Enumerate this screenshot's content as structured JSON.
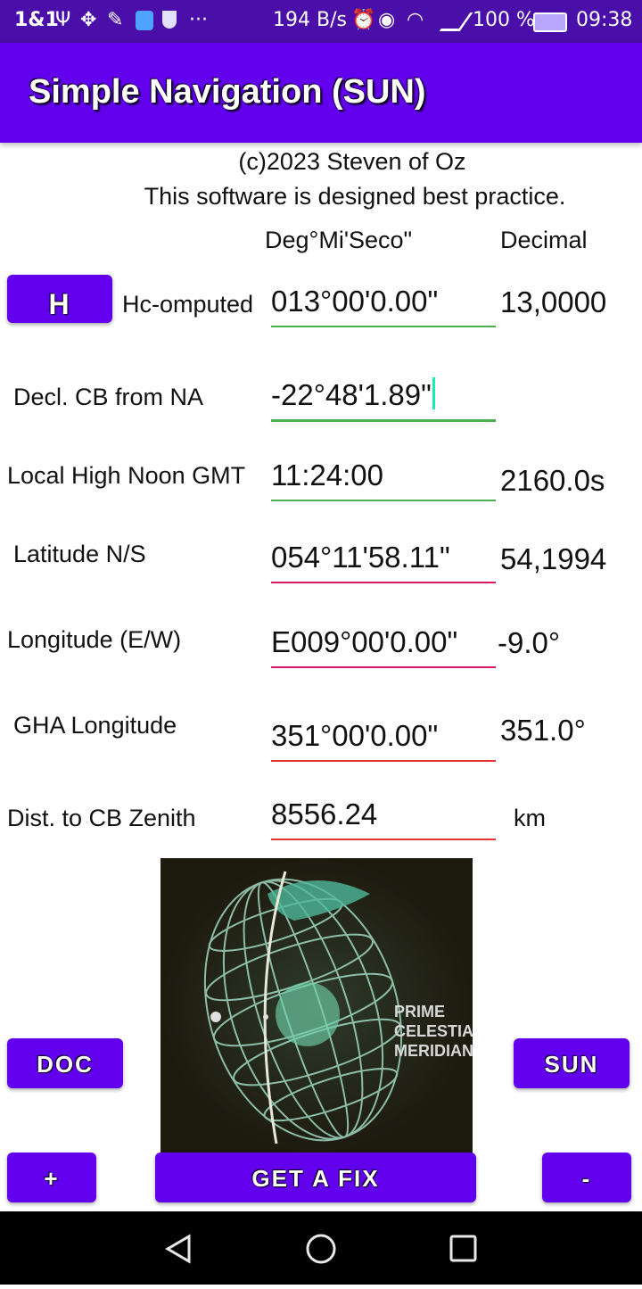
{
  "status_bar": {
    "left": "1&1",
    "left_icons": [
      "usb-icon",
      "dropbox-icon",
      "wrench-icon",
      "shield-icon",
      "shield-outline-icon",
      "more-icon"
    ],
    "speed": "194 B/s",
    "battery": "100 %",
    "time": "09:38"
  },
  "app_bar": {
    "title": "Simple Navigation (SUN)"
  },
  "header": {
    "copyright": "(c)2023 Steven of Oz",
    "tagline": "This software is designed best practice.",
    "col_dms": "Deg°Mi'Seco\"",
    "col_decimal": "Decimal"
  },
  "rows": {
    "hc": {
      "button": "H",
      "label": "Hc-omputed",
      "value": "013°00'0.00\"",
      "decimal": "13,0000"
    },
    "decl": {
      "label": "Decl. CB from NA",
      "value": "-22°48'1.89\""
    },
    "noon": {
      "label": "Local High Noon GMT",
      "value": "11:24:00",
      "decimal": "2160.0s"
    },
    "lat": {
      "label": "Latitude N/S",
      "value": "054°11'58.11\"",
      "decimal": "54,1994"
    },
    "lon": {
      "label": "Longitude (E/W)",
      "value": "E009°00'0.00\"",
      "decimal": "-9.0°"
    },
    "gha": {
      "label": "GHA Longitude",
      "value": "351°00'0.00\"",
      "decimal": "351.0°"
    },
    "dist": {
      "label": "Dist. to CB Zenith",
      "value": "8556.24",
      "unit": "km"
    }
  },
  "image": {
    "caption_lines": [
      "PRIME",
      "CELESTIAL",
      "MERIDIAN"
    ],
    "icon": "celestial-globe-image"
  },
  "buttons": {
    "doc": "DOC",
    "sun": "SUN",
    "plus": "+",
    "fix": "GET A FIX",
    "minus": "-"
  },
  "nav": {
    "icons": [
      "back-icon",
      "home-icon",
      "recents-icon"
    ]
  },
  "colors": {
    "primary": "#6200ee",
    "status_bar": "#4a0fa8",
    "field_ok": "#4caf50",
    "field_warn": "#e53935"
  }
}
